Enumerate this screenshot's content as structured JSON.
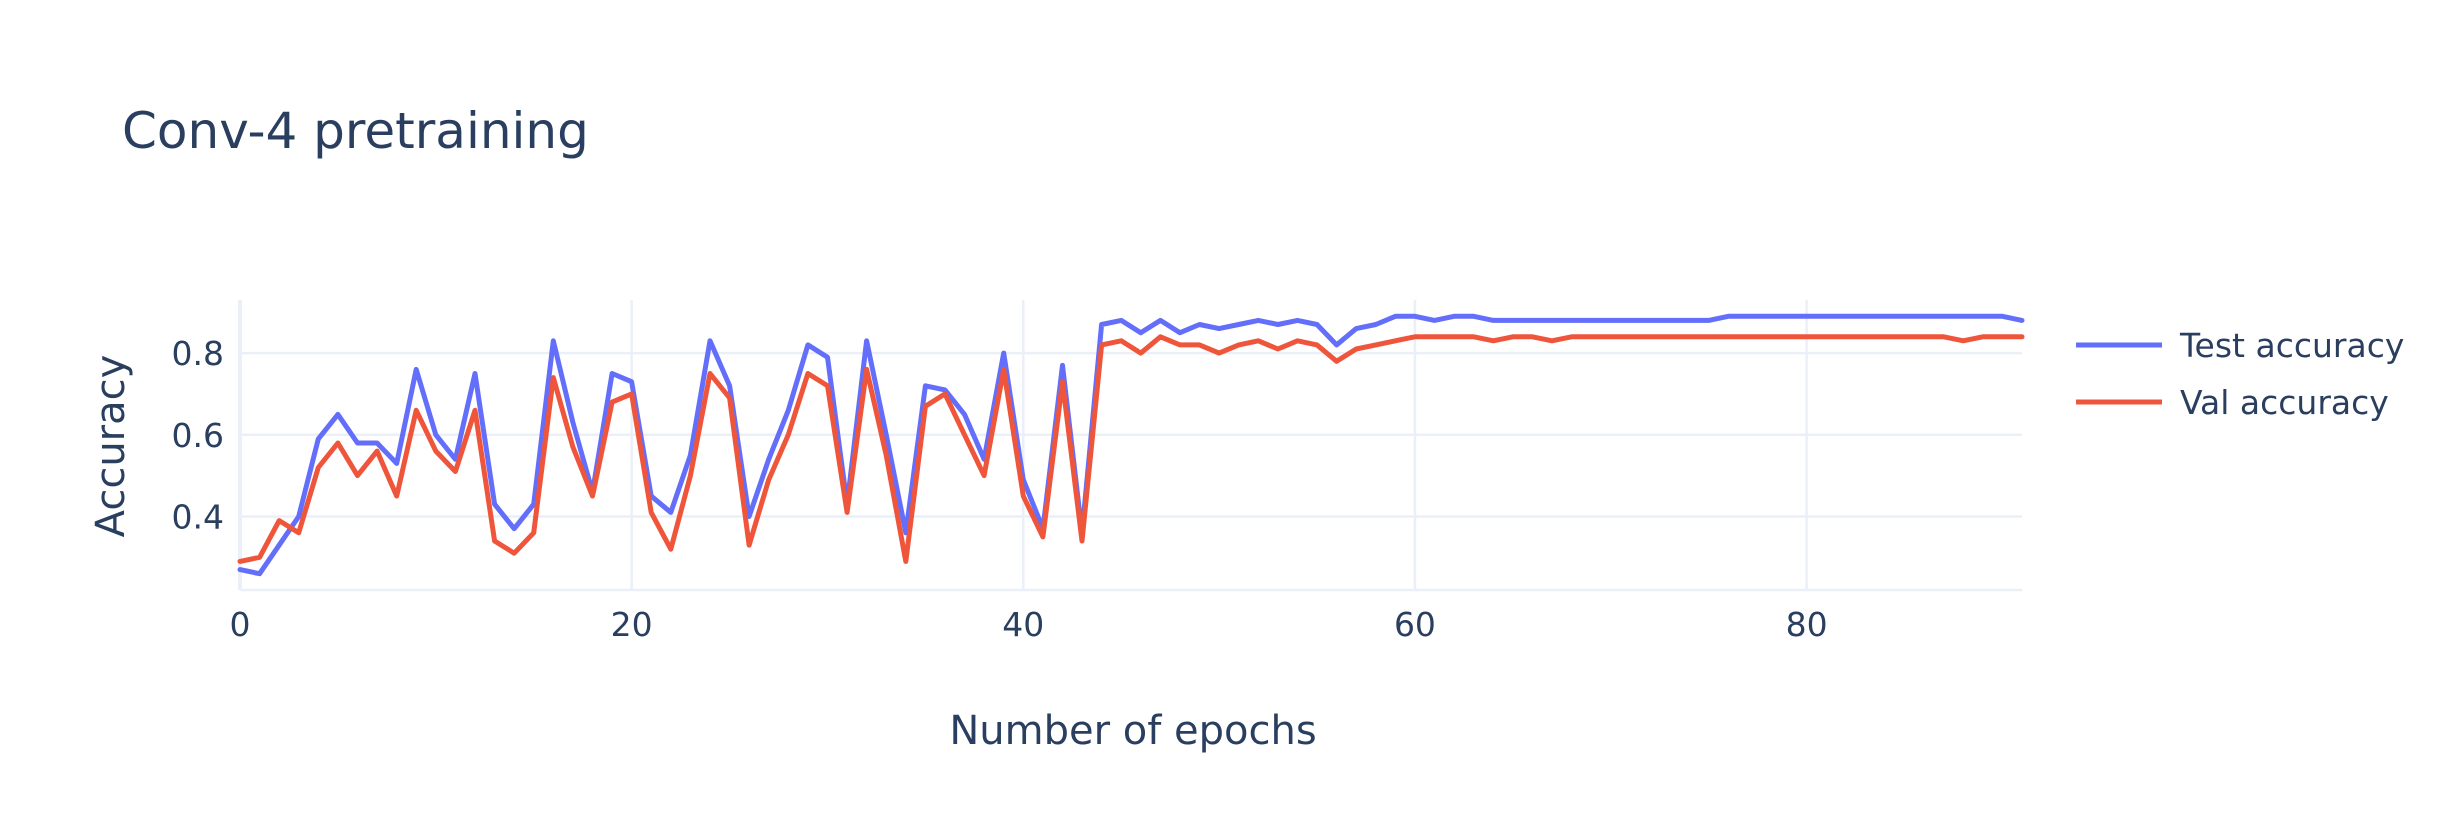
{
  "chart_data": {
    "type": "line",
    "title": "Conv-4 pretraining",
    "xlabel": "Number of epochs",
    "ylabel": "Accuracy",
    "xlim": [
      0,
      91
    ],
    "ylim": [
      0.22,
      0.93
    ],
    "x_ticks": [
      0,
      20,
      40,
      60,
      80
    ],
    "y_ticks": [
      0.4,
      0.6,
      0.8
    ],
    "x_tick_labels": [
      "0",
      "20",
      "40",
      "60",
      "80"
    ],
    "y_tick_labels": [
      "0.4",
      "0.6",
      "0.8"
    ],
    "grid": true,
    "legend_position": "top-right",
    "x": [
      0,
      1,
      2,
      3,
      4,
      5,
      6,
      7,
      8,
      9,
      10,
      11,
      12,
      13,
      14,
      15,
      16,
      17,
      18,
      19,
      20,
      21,
      22,
      23,
      24,
      25,
      26,
      27,
      28,
      29,
      30,
      31,
      32,
      33,
      34,
      35,
      36,
      37,
      38,
      39,
      40,
      41,
      42,
      43,
      44,
      45,
      46,
      47,
      48,
      49,
      50,
      51,
      52,
      53,
      54,
      55,
      56,
      57,
      58,
      59,
      60,
      61,
      62,
      63,
      64,
      65,
      66,
      67,
      68,
      69,
      70,
      71,
      72,
      73,
      74,
      75,
      76,
      77,
      78,
      79,
      80,
      81,
      82,
      83,
      84,
      85,
      86,
      87,
      88,
      89,
      90,
      91
    ],
    "series": [
      {
        "name": "Test accuracy",
        "color": "#636efa",
        "values": [
          0.27,
          0.26,
          0.33,
          0.4,
          0.59,
          0.65,
          0.58,
          0.58,
          0.53,
          0.76,
          0.6,
          0.54,
          0.75,
          0.43,
          0.37,
          0.43,
          0.83,
          0.63,
          0.46,
          0.75,
          0.73,
          0.45,
          0.41,
          0.55,
          0.83,
          0.72,
          0.4,
          0.54,
          0.66,
          0.82,
          0.79,
          0.43,
          0.83,
          0.6,
          0.36,
          0.72,
          0.71,
          0.65,
          0.54,
          0.8,
          0.49,
          0.37,
          0.77,
          0.36,
          0.87,
          0.88,
          0.85,
          0.88,
          0.85,
          0.87,
          0.86,
          0.87,
          0.88,
          0.87,
          0.88,
          0.87,
          0.82,
          0.86,
          0.87,
          0.89,
          0.89,
          0.88,
          0.89,
          0.89,
          0.88,
          0.88,
          0.88,
          0.88,
          0.88,
          0.88,
          0.88,
          0.88,
          0.88,
          0.88,
          0.88,
          0.88,
          0.89,
          0.89,
          0.89,
          0.89,
          0.89,
          0.89,
          0.89,
          0.89,
          0.89,
          0.89,
          0.89,
          0.89,
          0.89,
          0.89,
          0.89,
          0.88
        ]
      },
      {
        "name": "Val accuracy",
        "color": "#ef553b",
        "values": [
          0.29,
          0.3,
          0.39,
          0.36,
          0.52,
          0.58,
          0.5,
          0.56,
          0.45,
          0.66,
          0.56,
          0.51,
          0.66,
          0.34,
          0.31,
          0.36,
          0.74,
          0.57,
          0.45,
          0.68,
          0.7,
          0.41,
          0.32,
          0.5,
          0.75,
          0.69,
          0.33,
          0.49,
          0.6,
          0.75,
          0.72,
          0.41,
          0.76,
          0.55,
          0.29,
          0.67,
          0.7,
          0.6,
          0.5,
          0.76,
          0.45,
          0.35,
          0.73,
          0.34,
          0.82,
          0.83,
          0.8,
          0.84,
          0.82,
          0.82,
          0.8,
          0.82,
          0.83,
          0.81,
          0.83,
          0.82,
          0.78,
          0.81,
          0.82,
          0.83,
          0.84,
          0.84,
          0.84,
          0.84,
          0.83,
          0.84,
          0.84,
          0.83,
          0.84,
          0.84,
          0.84,
          0.84,
          0.84,
          0.84,
          0.84,
          0.84,
          0.84,
          0.84,
          0.84,
          0.84,
          0.84,
          0.84,
          0.84,
          0.84,
          0.84,
          0.84,
          0.84,
          0.84,
          0.83,
          0.84,
          0.84,
          0.84
        ]
      }
    ]
  }
}
